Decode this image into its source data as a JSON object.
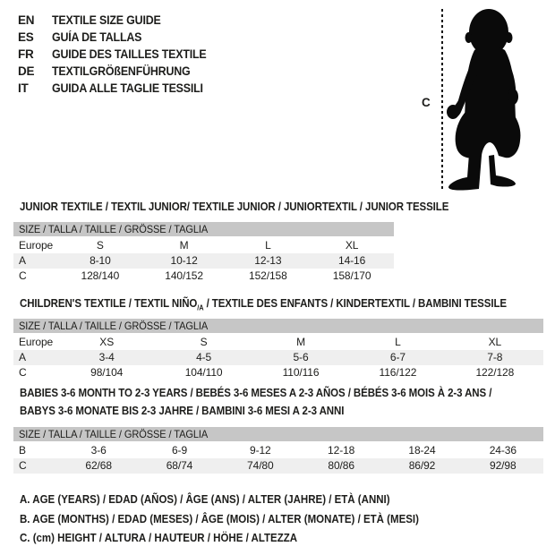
{
  "languages": [
    {
      "code": "EN",
      "label": "TEXTILE SIZE GUIDE"
    },
    {
      "code": "ES",
      "label": "GUÍA DE TALLAS"
    },
    {
      "code": "FR",
      "label": "GUIDE DES TAILLES TEXTILE"
    },
    {
      "code": "DE",
      "label": "TEXTILGRÖßENFÜHRUNG"
    },
    {
      "code": "IT",
      "label": "GUIDA ALLE TAGLIE TESSILI"
    }
  ],
  "figure": {
    "measure_label": "C",
    "image": "toddler-silhouette"
  },
  "tables": [
    {
      "title": "JUNIOR TEXTILE / TEXTIL JUNIOR/ TEXTILE JUNIOR / JUNIORTEXTIL / JUNIOR TESSILE",
      "size_header": "SIZE / TALLA / TAILLE / GRÖSSE / TAGLIA",
      "rows": [
        {
          "label": "Europe",
          "values": [
            "S",
            "M",
            "L",
            "XL"
          ],
          "shaded": false
        },
        {
          "label": "A",
          "values": [
            "8-10",
            "10-12",
            "12-13",
            "14-16"
          ],
          "shaded": true
        },
        {
          "label": "C",
          "values": [
            "128/140",
            "140/152",
            "152/158",
            "158/170"
          ],
          "shaded": false
        }
      ]
    },
    {
      "title_pre": "CHILDREN'S TEXTILE / TEXTIL NIÑO",
      "title_sub": "/A",
      "title_post": " / TEXTILE DES ENFANTS / KINDERTEXTIL / BAMBINI TESSILE",
      "size_header": "SIZE / TALLA / TAILLE / GRÖSSE / TAGLIA",
      "rows": [
        {
          "label": "Europe",
          "values": [
            "XS",
            "S",
            "M",
            "L",
            "XL"
          ],
          "shaded": false
        },
        {
          "label": "A",
          "values": [
            "3-4",
            "4-5",
            "5-6",
            "6-7",
            "7-8"
          ],
          "shaded": true
        },
        {
          "label": "C",
          "values": [
            "98/104",
            "104/110",
            "110/116",
            "116/122",
            "122/128"
          ],
          "shaded": false
        }
      ]
    },
    {
      "title": "BABIES 3-6 MONTH TO 2-3 YEARS / BEBÉS 3-6 MESES A 2-3 AÑOS / BÉBÉS 3-6 MOIS À 2-3 ANS /",
      "title_line2": "BABYS 3-6 MONATE BIS 2-3 JAHRE / BAMBINI 3-6 MESI A 2-3 ANNI",
      "size_header": "SIZE / TALLA / TAILLE / GRÖSSE / TAGLIA",
      "rows": [
        {
          "label": "B",
          "values": [
            "3-6",
            "6-9",
            "9-12",
            "12-18",
            "18-24",
            "24-36"
          ],
          "shaded": false
        },
        {
          "label": "C",
          "values": [
            "62/68",
            "68/74",
            "74/80",
            "80/86",
            "86/92",
            "92/98"
          ],
          "shaded": true
        }
      ]
    }
  ],
  "legend": [
    "A. AGE (YEARS) / EDAD (AÑOS) / ÂGE (ANS) / ALTER (JAHRE) / ETÀ (ANNI)",
    "B. AGE (MONTHS) / EDAD (MESES) / ÂGE (MOIS) / ALTER (MONATE) / ETÀ (MESI)",
    "C. (cm) HEIGHT / ALTURA / HAUTEUR / HÖHE / ALTEZZA"
  ],
  "colors": {
    "text": "#1d1d1b",
    "header_bar": "#c6c6c6",
    "row_shade": "#efefef",
    "background": "#ffffff"
  }
}
